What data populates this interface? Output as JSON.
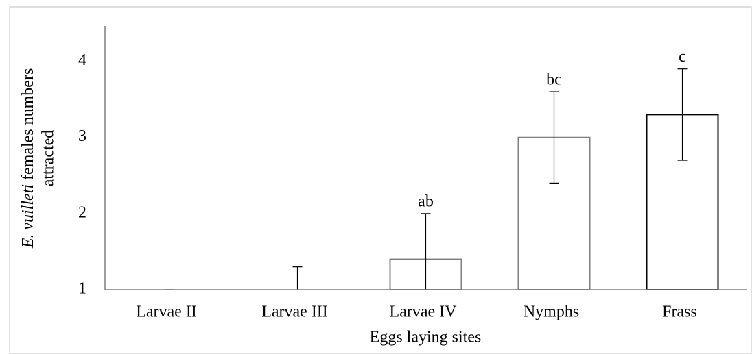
{
  "chart_data": {
    "type": "bar",
    "ylabel": {
      "species": "E. vuilleti",
      "line1": "females numbers",
      "line2": "attracted"
    },
    "xlabel": "Eggs laying sites",
    "categories": [
      "Larvae II",
      "Larvae III",
      "Larvae IV",
      "Nymphs",
      "Frass"
    ],
    "values": [
      1,
      1,
      1.4,
      3.0,
      3.3
    ],
    "errors": [
      0,
      0.3,
      0.6,
      0.6,
      0.6
    ],
    "annotations": [
      null,
      null,
      "ab",
      "bc",
      "c"
    ],
    "colors": [
      "#7f7f7f",
      "#7f7f7f",
      "#7f7f7f",
      "#7f7f7f",
      "#000000"
    ],
    "ylim": [
      1,
      4.5
    ],
    "yticks": [
      1,
      2,
      3,
      4
    ],
    "grid": false
  }
}
